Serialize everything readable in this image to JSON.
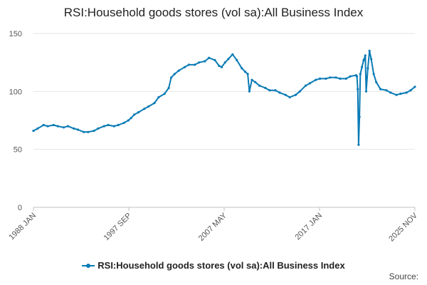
{
  "chart_data": {
    "type": "line",
    "title": "RSI:Household goods stores (vol sa):All Business Index",
    "xlabel": "",
    "ylabel": "",
    "ylim": [
      0,
      150
    ],
    "yticks": [
      0,
      50,
      100,
      150
    ],
    "grid": true,
    "legend_position": "bottom",
    "x_tick_labels": [
      "1988 JAN",
      "1997 SEP",
      "2007 MAY",
      "2017 JAN",
      "2025 NOV"
    ],
    "x_range": [
      "1988-01",
      "2025-11"
    ],
    "series": [
      {
        "name": "RSI:Household goods stores (vol sa):All Business Index",
        "color": "#0a7bb5",
        "points": [
          [
            "1988-01",
            66
          ],
          [
            "1988-06",
            68
          ],
          [
            "1989-01",
            71
          ],
          [
            "1989-06",
            70
          ],
          [
            "1990-01",
            71
          ],
          [
            "1990-06",
            70
          ],
          [
            "1991-01",
            69
          ],
          [
            "1991-06",
            70
          ],
          [
            "1992-01",
            68
          ],
          [
            "1992-06",
            67
          ],
          [
            "1993-01",
            65
          ],
          [
            "1993-06",
            65
          ],
          [
            "1994-01",
            66
          ],
          [
            "1994-06",
            68
          ],
          [
            "1995-01",
            70
          ],
          [
            "1995-06",
            71
          ],
          [
            "1996-01",
            70
          ],
          [
            "1996-06",
            71
          ],
          [
            "1997-01",
            73
          ],
          [
            "1997-06",
            75
          ],
          [
            "1997-09",
            77
          ],
          [
            "1998-01",
            80
          ],
          [
            "1998-06",
            82
          ],
          [
            "1999-01",
            85
          ],
          [
            "1999-06",
            87
          ],
          [
            "2000-01",
            90
          ],
          [
            "2000-06",
            95
          ],
          [
            "2001-01",
            98
          ],
          [
            "2001-06",
            103
          ],
          [
            "2001-09",
            112
          ],
          [
            "2002-01",
            115
          ],
          [
            "2002-06",
            118
          ],
          [
            "2003-01",
            121
          ],
          [
            "2003-06",
            123
          ],
          [
            "2004-01",
            123
          ],
          [
            "2004-06",
            125
          ],
          [
            "2005-01",
            126
          ],
          [
            "2005-06",
            129
          ],
          [
            "2006-01",
            127
          ],
          [
            "2006-06",
            122
          ],
          [
            "2006-09",
            121
          ],
          [
            "2007-01",
            125
          ],
          [
            "2007-05",
            128
          ],
          [
            "2007-10",
            132
          ],
          [
            "2008-03",
            127
          ],
          [
            "2008-09",
            120
          ],
          [
            "2009-01",
            117
          ],
          [
            "2009-04",
            115
          ],
          [
            "2009-06",
            100
          ],
          [
            "2009-09",
            110
          ],
          [
            "2010-01",
            108
          ],
          [
            "2010-06",
            105
          ],
          [
            "2011-01",
            103
          ],
          [
            "2011-06",
            101
          ],
          [
            "2012-01",
            101
          ],
          [
            "2012-06",
            99
          ],
          [
            "2013-01",
            97
          ],
          [
            "2013-06",
            95
          ],
          [
            "2014-01",
            97
          ],
          [
            "2014-06",
            100
          ],
          [
            "2015-01",
            105
          ],
          [
            "2015-06",
            107
          ],
          [
            "2016-01",
            110
          ],
          [
            "2016-06",
            111
          ],
          [
            "2017-01",
            111
          ],
          [
            "2017-06",
            112
          ],
          [
            "2018-01",
            112
          ],
          [
            "2018-06",
            111
          ],
          [
            "2019-01",
            111
          ],
          [
            "2019-06",
            113
          ],
          [
            "2020-01",
            114
          ],
          [
            "2020-02",
            113
          ],
          [
            "2020-03",
            102
          ],
          [
            "2020-04",
            54
          ],
          [
            "2020-05",
            78
          ],
          [
            "2020-06",
            115
          ],
          [
            "2020-08",
            121
          ],
          [
            "2020-10",
            127
          ],
          [
            "2020-12",
            131
          ],
          [
            "2021-01",
            100
          ],
          [
            "2021-03",
            120
          ],
          [
            "2021-05",
            135
          ],
          [
            "2021-07",
            128
          ],
          [
            "2021-10",
            115
          ],
          [
            "2022-01",
            108
          ],
          [
            "2022-06",
            102
          ],
          [
            "2023-01",
            101
          ],
          [
            "2023-06",
            99
          ],
          [
            "2024-01",
            97
          ],
          [
            "2024-06",
            98
          ],
          [
            "2025-01",
            99
          ],
          [
            "2025-06",
            101
          ],
          [
            "2025-11",
            104
          ]
        ]
      }
    ]
  },
  "footer": {
    "source_label": "Source:"
  }
}
